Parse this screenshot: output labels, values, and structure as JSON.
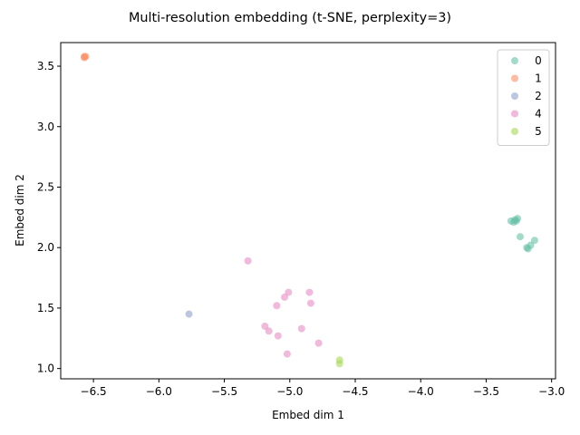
{
  "chart_data": {
    "type": "scatter",
    "title": "Multi-resolution embedding (t-SNE, perplexity=3)",
    "xlabel": "Embed dim 1",
    "ylabel": "Embed dim 2",
    "xlim": [
      -6.75,
      -2.97
    ],
    "ylim": [
      0.915,
      3.695
    ],
    "xticks": [
      -6.5,
      -6.0,
      -5.5,
      -5.0,
      -4.5,
      -4.0,
      -3.5,
      -3.0
    ],
    "xtick_labels": [
      "−6.5",
      "−6.0",
      "−5.5",
      "−5.0",
      "−4.5",
      "−4.0",
      "−3.5",
      "−3.0"
    ],
    "yticks": [
      1.0,
      1.5,
      2.0,
      2.5,
      3.0,
      3.5
    ],
    "ytick_labels": [
      "1.0",
      "1.5",
      "2.0",
      "2.5",
      "3.0",
      "3.5"
    ],
    "grid": false,
    "legend_position": "top-right",
    "series": [
      {
        "name": "0",
        "color": "#66c2a5",
        "x": [
          -3.31,
          -3.29,
          -3.28,
          -3.27,
          -3.26,
          -3.24,
          -3.19,
          -3.18,
          -3.16,
          -3.13
        ],
        "y": [
          2.22,
          2.21,
          2.23,
          2.22,
          2.24,
          2.09,
          2.0,
          1.99,
          2.02,
          2.06
        ]
      },
      {
        "name": "1",
        "color": "#fc8d62",
        "x": [
          -6.57,
          -6.57,
          -6.56
        ],
        "y": [
          3.58,
          3.57,
          3.58
        ]
      },
      {
        "name": "2",
        "color": "#8da0cb",
        "x": [
          -5.77
        ],
        "y": [
          1.45
        ]
      },
      {
        "name": "4",
        "color": "#e78ac3",
        "x": [
          -5.32,
          -5.01,
          -5.04,
          -5.1,
          -4.85,
          -4.84,
          -5.19,
          -5.16,
          -5.09,
          -4.91,
          -4.78,
          -5.02
        ],
        "y": [
          1.89,
          1.63,
          1.59,
          1.52,
          1.63,
          1.54,
          1.35,
          1.31,
          1.27,
          1.33,
          1.21,
          1.12
        ]
      },
      {
        "name": "5",
        "color": "#a6d854",
        "x": [
          -4.62,
          -4.62
        ],
        "y": [
          1.07,
          1.04
        ]
      }
    ]
  }
}
